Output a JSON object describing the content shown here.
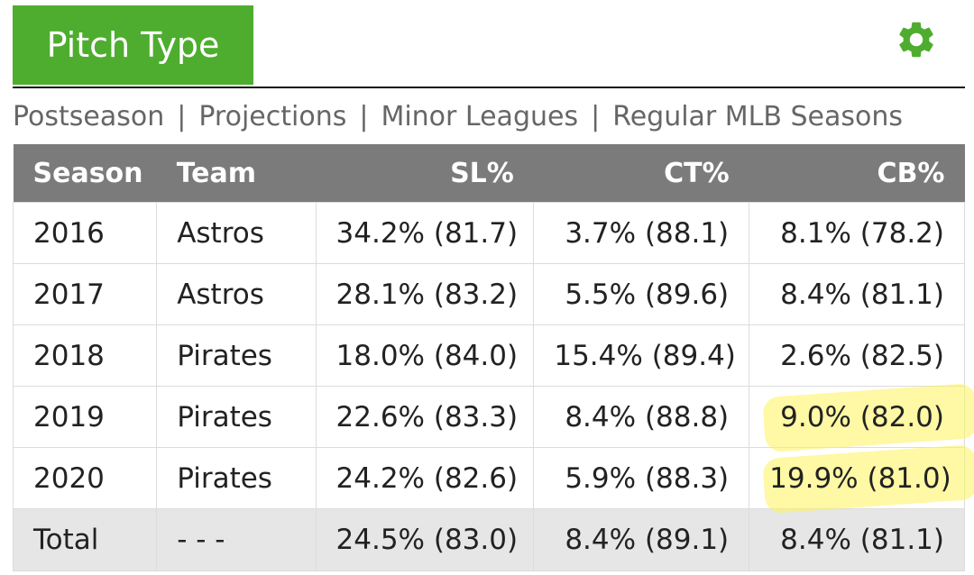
{
  "header": {
    "tab_label": "Pitch Type",
    "settings_icon": "gear-icon",
    "accent_color": "#4ead2e"
  },
  "nav": {
    "links": [
      "Postseason",
      "Projections",
      "Minor Leagues",
      "Regular MLB Seasons"
    ],
    "separator": "|"
  },
  "table": {
    "headers": [
      "Season",
      "Team",
      "SL%",
      "CT%",
      "CB%"
    ],
    "rows": [
      [
        "2016",
        "Astros",
        "34.2% (81.7)",
        "3.7% (88.1)",
        "8.1% (78.2)"
      ],
      [
        "2017",
        "Astros",
        "28.1% (83.2)",
        "5.5% (89.6)",
        "8.4% (81.1)"
      ],
      [
        "2018",
        "Pirates",
        "18.0% (84.0)",
        "15.4% (89.4)",
        "2.6% (82.5)"
      ],
      [
        "2019",
        "Pirates",
        "22.6% (83.3)",
        "8.4% (88.8)",
        "9.0% (82.0)"
      ],
      [
        "2020",
        "Pirates",
        "24.2% (82.6)",
        "5.9% (88.3)",
        "19.9% (81.0)"
      ]
    ],
    "total": [
      "Total",
      "- - -",
      "24.5% (83.0)",
      "8.4% (89.1)",
      "8.4% (81.1)"
    ],
    "highlight_color": "#fff25a"
  }
}
